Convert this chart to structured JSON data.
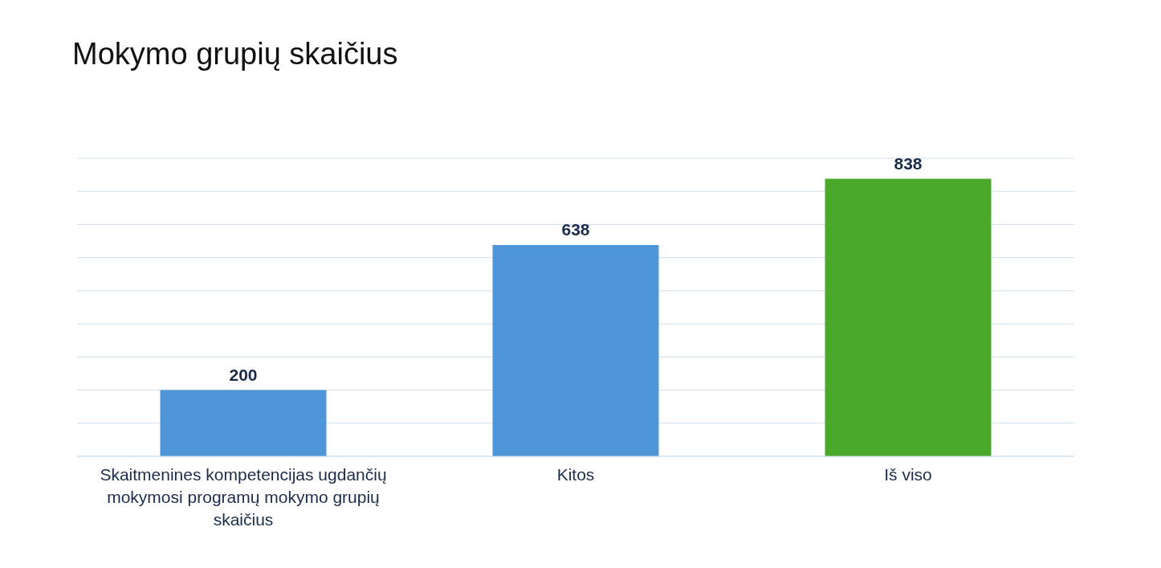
{
  "chart_data": {
    "type": "bar",
    "title": "Mokymo grupių skaičius",
    "categories": [
      "Skaitmenines kompetencijas ugdančių mokymosi programų mokymo grupių skaičius",
      "Kitos",
      "Iš viso"
    ],
    "values": [
      200,
      638,
      838
    ],
    "colors": [
      "#4f96d9",
      "#4f96d9",
      "#4aa82a"
    ],
    "ylim": [
      0,
      900
    ],
    "grid": "y",
    "tick_labels": "x",
    "data_labels": true
  }
}
